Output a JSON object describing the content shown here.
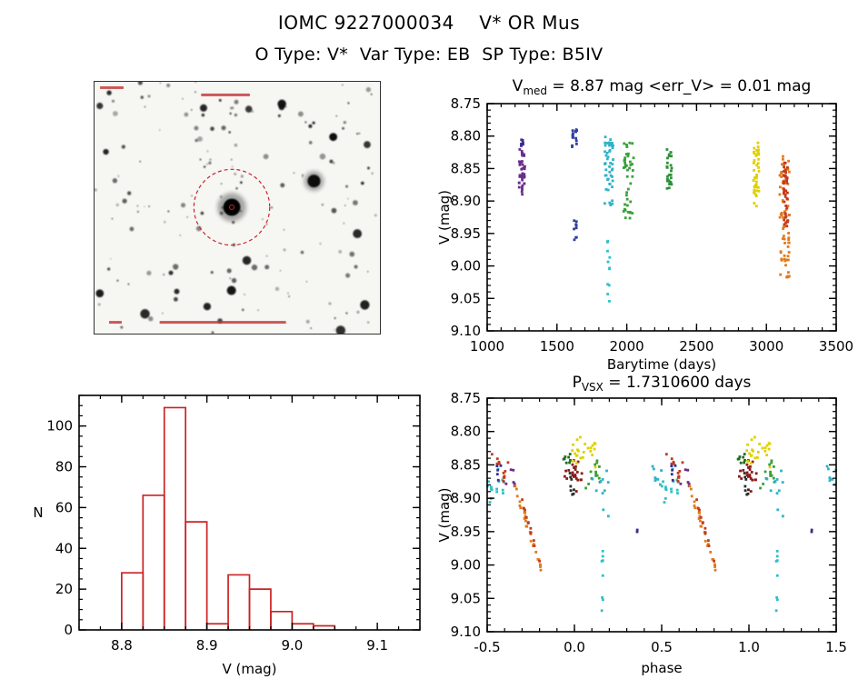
{
  "header": {
    "title": "IOMC 9227000034    V* OR Mus",
    "subtitle": "O Type: V*  Var Type: EB  SP Type: B5IV"
  },
  "star_image": {
    "background": "#f6f6f3",
    "target_circle_color": "#cc2222",
    "annotation_color": "#c03030"
  },
  "chart_data": [
    {
      "id": "timeseries",
      "type": "scatter",
      "title_parts": [
        {
          "text": "V"
        },
        {
          "text": "med",
          "sub": true
        },
        {
          "text": " = 8.87 mag <err_V> = 0.01 mag"
        }
      ],
      "xlabel": "Barytime (days)",
      "ylabel": "V (mag)",
      "xlim": [
        1000,
        3500
      ],
      "ylim": [
        8.75,
        9.1
      ],
      "y_inverted": true,
      "xticks": [
        1000,
        1500,
        2000,
        2500,
        3000,
        3500
      ],
      "xtick_labels": [
        "1000",
        "1500",
        "2000",
        "2500",
        "3000",
        "3500"
      ],
      "yticks": [
        8.75,
        8.8,
        8.85,
        8.9,
        8.95,
        9.0,
        9.05,
        9.1
      ],
      "ytick_labels": [
        "8.75",
        "8.80",
        "8.85",
        "8.90",
        "8.95",
        "9.00",
        "9.05",
        "9.10"
      ],
      "x_minor": 100,
      "y_minor": 0.01,
      "clusters": [
        {
          "color": "#6a2d8e",
          "type": "streak",
          "x": [
            1225,
            1275
          ],
          "y": [
            8.82,
            8.89
          ],
          "n": 42,
          "cols": 3
        },
        {
          "color": "#3b2d8e",
          "type": "streak",
          "x": [
            1240,
            1262
          ],
          "y": [
            8.8,
            8.815
          ],
          "n": 8,
          "cols": 2
        },
        {
          "color": "#2f3f9e",
          "type": "streak",
          "x": [
            1600,
            1650
          ],
          "y": [
            8.79,
            8.82
          ],
          "n": 16,
          "cols": 2
        },
        {
          "color": "#2f3f9e",
          "type": "streak",
          "x": [
            1615,
            1645
          ],
          "y": [
            8.93,
            8.96
          ],
          "n": 9,
          "cols": 2
        },
        {
          "color": "#2fb3c9",
          "type": "streak",
          "x": [
            1840,
            1905
          ],
          "y": [
            8.8,
            8.91
          ],
          "n": 48,
          "cols": 4
        },
        {
          "color": "#2fc0c9",
          "type": "streak",
          "x": [
            1858,
            1882
          ],
          "y": [
            8.96,
            9.07
          ],
          "n": 11,
          "cols": 2
        },
        {
          "color": "#3aa03a",
          "type": "streak",
          "x": [
            1975,
            2055
          ],
          "y": [
            8.81,
            8.93
          ],
          "n": 42,
          "cols": 4
        },
        {
          "color": "#2f8f3a",
          "type": "streak",
          "x": [
            2285,
            2325
          ],
          "y": [
            8.82,
            8.89
          ],
          "n": 26,
          "cols": 3
        },
        {
          "color": "#e0d000",
          "type": "streak",
          "x": [
            2905,
            2950
          ],
          "y": [
            8.81,
            8.91
          ],
          "n": 45,
          "cols": 3
        },
        {
          "color": "#e07a1e",
          "type": "streak",
          "x": [
            3095,
            3165
          ],
          "y": [
            8.83,
            9.02
          ],
          "n": 70,
          "cols": 5
        },
        {
          "color": "#c23b1c",
          "type": "streak",
          "x": [
            3120,
            3155
          ],
          "y": [
            8.84,
            8.94
          ],
          "n": 40,
          "cols": 3
        }
      ]
    },
    {
      "id": "histogram",
      "type": "bar",
      "xlabel": "V (mag)",
      "ylabel": "N",
      "xlim": [
        8.75,
        9.15
      ],
      "ylim": [
        0,
        115
      ],
      "xticks": [
        8.8,
        8.9,
        9.0,
        9.1
      ],
      "xtick_labels": [
        "8.8",
        "8.9",
        "9.0",
        "9.1"
      ],
      "yticks": [
        0,
        20,
        40,
        60,
        80,
        100
      ],
      "ytick_labels": [
        "0",
        "20",
        "40",
        "60",
        "80",
        "100"
      ],
      "x_minor": 0.025,
      "y_minor": 5,
      "bin_start": 8.8,
      "bin_width": 0.025,
      "counts": [
        28,
        66,
        109,
        53,
        3,
        27,
        20,
        9,
        3,
        2
      ],
      "color": "#cc2222"
    },
    {
      "id": "phase",
      "type": "scatter",
      "title_parts": [
        {
          "text": "P"
        },
        {
          "text": "VSX",
          "sub": true
        },
        {
          "text": " = 1.7310600 days"
        }
      ],
      "xlabel": "phase",
      "ylabel": "V (mag)",
      "xlim": [
        -0.5,
        1.5
      ],
      "ylim": [
        8.75,
        9.1
      ],
      "y_inverted": true,
      "xticks": [
        -0.5,
        0.0,
        0.5,
        1.0,
        1.5
      ],
      "xtick_labels": [
        "-0.5",
        "0.0",
        "0.5",
        "1.0",
        "1.5"
      ],
      "yticks": [
        8.75,
        8.8,
        8.85,
        8.9,
        8.95,
        9.0,
        9.05,
        9.1
      ],
      "ytick_labels": [
        "8.75",
        "8.80",
        "8.85",
        "8.90",
        "8.95",
        "9.00",
        "9.05",
        "9.10"
      ],
      "x_minor": 0.1,
      "y_minor": 0.01,
      "duplicate_dx": 1.0,
      "duplicate_below": 0.5,
      "clusters": [
        {
          "color": "#2fc0c9",
          "type": "blob",
          "x": [
            -0.5,
            -0.4
          ],
          "y": [
            8.82,
            8.92
          ],
          "n": 16
        },
        {
          "color": "#c23b1c",
          "type": "blob",
          "x": [
            -0.48,
            -0.38
          ],
          "y": [
            8.83,
            8.88
          ],
          "n": 12
        },
        {
          "color": "#3b2d8e",
          "type": "blob",
          "x": [
            -0.46,
            -0.42
          ],
          "y": [
            8.84,
            8.88
          ],
          "n": 5
        },
        {
          "color": "#6a2d8e",
          "type": "blob",
          "x": [
            -0.4,
            -0.34
          ],
          "y": [
            8.85,
            8.9
          ],
          "n": 6
        },
        {
          "color": "#e07a1e",
          "type": "trend",
          "x": [
            -0.34,
            -0.19
          ],
          "y": [
            8.88,
            9.01
          ],
          "n": 26
        },
        {
          "color": "#c23b1c",
          "type": "trend",
          "x": [
            -0.3,
            -0.2
          ],
          "y": [
            8.9,
            9.0
          ],
          "n": 12
        },
        {
          "color": "#8b1a1a",
          "type": "blob",
          "x": [
            -0.06,
            0.05
          ],
          "y": [
            8.83,
            8.9
          ],
          "n": 22
        },
        {
          "color": "#1e6b1e",
          "type": "blob",
          "x": [
            -0.1,
            -0.02
          ],
          "y": [
            8.82,
            8.86
          ],
          "n": 8
        },
        {
          "color": "#2b2b2b",
          "type": "blob",
          "x": [
            -0.04,
            0.02
          ],
          "y": [
            8.85,
            8.9
          ],
          "n": 8
        },
        {
          "color": "#e0d000",
          "type": "blob",
          "x": [
            -0.02,
            0.12
          ],
          "y": [
            8.8,
            8.86
          ],
          "n": 24
        },
        {
          "color": "#3aa03a",
          "type": "blob",
          "x": [
            0.04,
            0.16
          ],
          "y": [
            8.82,
            8.9
          ],
          "n": 14
        },
        {
          "color": "#2fb3c9",
          "type": "blob",
          "x": [
            0.1,
            0.2
          ],
          "y": [
            8.84,
            8.94
          ],
          "n": 10
        },
        {
          "color": "#2fc0c9",
          "type": "streak",
          "x": [
            0.14,
            0.18
          ],
          "y": [
            8.95,
            9.07
          ],
          "n": 8,
          "cols": 1
        },
        {
          "color": "#3b2d8e",
          "type": "blob",
          "x": [
            0.33,
            0.38
          ],
          "y": [
            8.94,
            8.96
          ],
          "n": 2
        },
        {
          "color": "#2fb3c9",
          "type": "blob",
          "x": [
            0.44,
            0.5
          ],
          "y": [
            8.84,
            8.89
          ],
          "n": 8
        }
      ]
    }
  ]
}
